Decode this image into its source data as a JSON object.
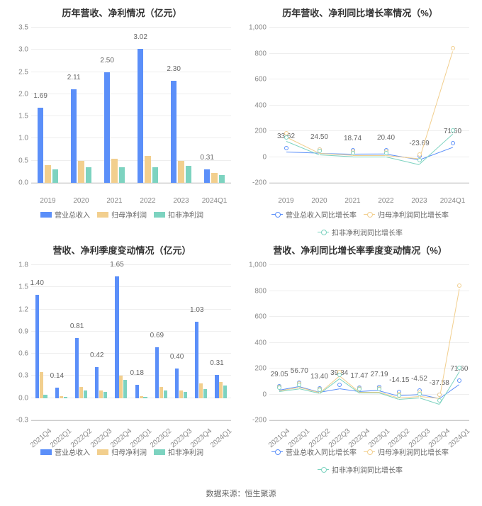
{
  "colors": {
    "bar1": "#5b8ff9",
    "bar2": "#f2cf8e",
    "bar3": "#7dd3c0",
    "line1": "#5b8ff9",
    "line2": "#f2cf8e",
    "line3": "#7dd3c0",
    "grid": "#eeeeee",
    "axis": "#cccccc",
    "text": "#888888"
  },
  "typography": {
    "title_fontsize": 13,
    "label_fontsize": 10
  },
  "footer_prefix": "数据来源：",
  "footer_source": "恒生聚源",
  "charts": [
    {
      "title": "历年营收、净利情况（亿元）",
      "type": "bar",
      "ylim": [
        0,
        3.5
      ],
      "ytick_step": 0.5,
      "categories": [
        "2019",
        "2020",
        "2021",
        "2022",
        "2023",
        "2024Q1"
      ],
      "rotate_x": false,
      "series": [
        {
          "name": "营业总收入",
          "color": "#5b8ff9",
          "values": [
            1.69,
            2.11,
            2.5,
            3.02,
            2.3,
            0.31
          ],
          "show_labels": true
        },
        {
          "name": "归母净利润",
          "color": "#f2cf8e",
          "values": [
            0.4,
            0.5,
            0.55,
            0.6,
            0.5,
            0.22
          ],
          "show_labels": false
        },
        {
          "name": "扣非净利润",
          "color": "#7dd3c0",
          "values": [
            0.3,
            0.35,
            0.35,
            0.35,
            0.38,
            0.17
          ],
          "show_labels": false
        }
      ],
      "bar_width": 0.18,
      "bar_gap": 0.04
    },
    {
      "title": "历年营收、净利同比增长率情况（%）",
      "type": "line",
      "ylim": [
        -200,
        1000
      ],
      "ytick_step": 200,
      "categories": [
        "2019",
        "2020",
        "2021",
        "2022",
        "2023",
        "2024Q1"
      ],
      "rotate_x": false,
      "series": [
        {
          "name": "营业总收入同比增长率",
          "color": "#5b8ff9",
          "values": [
            33.62,
            24.5,
            18.74,
            20.4,
            -23.69,
            71.6
          ],
          "show_labels": true
        },
        {
          "name": "归母净利润同比增长率",
          "color": "#f2cf8e",
          "values": [
            150,
            25,
            10,
            10,
            -15,
            810
          ],
          "show_labels": false
        },
        {
          "name": "扣非净利润同比增长率",
          "color": "#7dd3c0",
          "values": [
            120,
            15,
            0,
            0,
            -60,
            170
          ],
          "show_labels": false
        }
      ]
    },
    {
      "title": "营收、净利季度变动情况（亿元）",
      "type": "bar",
      "ylim": [
        -0.3,
        1.8
      ],
      "ytick_step": 0.3,
      "categories": [
        "2021Q4",
        "2022Q1",
        "2022Q2",
        "2022Q3",
        "2022Q4",
        "2023Q1",
        "2023Q2",
        "2023Q3",
        "2023Q4",
        "2024Q1"
      ],
      "rotate_x": true,
      "series": [
        {
          "name": "营业总收入",
          "color": "#5b8ff9",
          "values": [
            1.4,
            0.14,
            0.81,
            0.42,
            1.65,
            0.18,
            0.69,
            0.4,
            1.03,
            0.31
          ],
          "show_labels": true
        },
        {
          "name": "归母净利润",
          "color": "#f2cf8e",
          "values": [
            0.35,
            0.03,
            0.15,
            0.1,
            0.3,
            0.03,
            0.15,
            0.1,
            0.2,
            0.22
          ],
          "show_labels": false
        },
        {
          "name": "扣非净利润",
          "color": "#7dd3c0",
          "values": [
            0.05,
            0.02,
            0.1,
            0.08,
            0.25,
            0.02,
            0.1,
            0.08,
            0.12,
            0.17
          ],
          "show_labels": false
        }
      ],
      "bar_width": 0.18,
      "bar_gap": 0.03
    },
    {
      "title": "营收、净利同比增长率季度变动情况（%）",
      "type": "line",
      "ylim": [
        -200,
        1000
      ],
      "ytick_step": 200,
      "categories": [
        "2021Q4",
        "2022Q1",
        "2022Q2",
        "2022Q3",
        "2022Q4",
        "2023Q1",
        "2023Q2",
        "2023Q3",
        "2023Q4",
        "2024Q1"
      ],
      "rotate_x": true,
      "series": [
        {
          "name": "营业总收入同比增长率",
          "color": "#5b8ff9",
          "values": [
            29.05,
            56.7,
            13.4,
            39.84,
            17.47,
            27.19,
            -14.15,
            -4.52,
            -37.58,
            71.6
          ],
          "show_labels": true
        },
        {
          "name": "归母净利润同比增长率",
          "color": "#f2cf8e",
          "values": [
            25,
            50,
            10,
            140,
            15,
            15,
            -30,
            -20,
            -35,
            810
          ],
          "show_labels": false
        },
        {
          "name": "扣非净利润同比增长率",
          "color": "#7dd3c0",
          "values": [
            20,
            40,
            5,
            120,
            10,
            10,
            -40,
            -30,
            -80,
            170
          ],
          "show_labels": false
        }
      ]
    }
  ]
}
